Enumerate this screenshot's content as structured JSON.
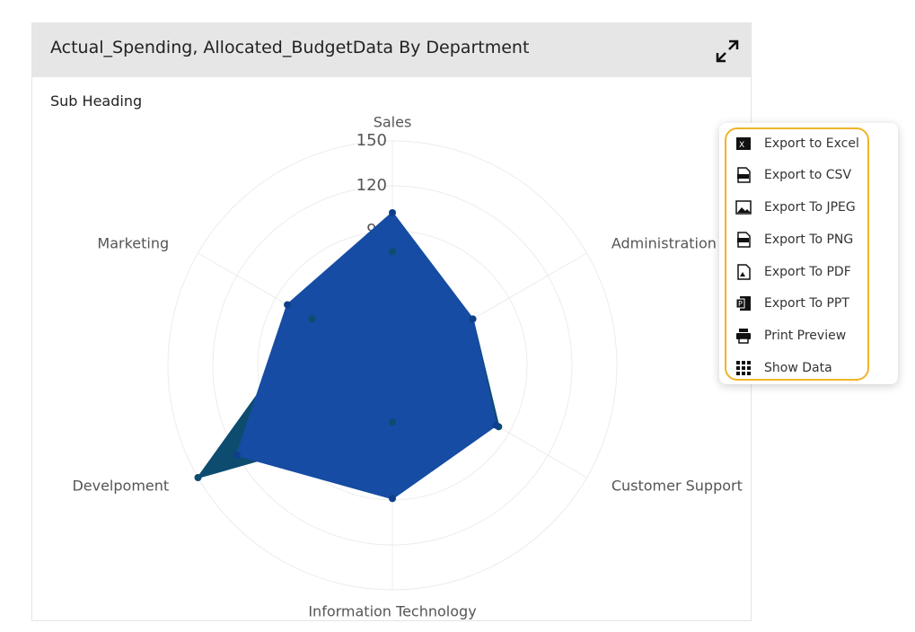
{
  "chart_data": {
    "type": "radar",
    "title": "Actual_Spending, Allocated_BudgetData By Department",
    "subtitle": "Sub Heading",
    "categories": [
      "Sales",
      "Administration",
      "Customer Support",
      "Information Technology",
      "Develpoment",
      "Marketing"
    ],
    "series": [
      {
        "color": "#0d4c6f",
        "values": [
          76,
          62,
          82,
          38,
          150,
          62
        ]
      },
      {
        "color": "#164ca3",
        "values": [
          102,
          62,
          80,
          89,
          120,
          81
        ]
      }
    ],
    "rlim": [
      0,
      150
    ],
    "rticks": [
      0,
      30,
      60,
      90,
      120,
      150
    ],
    "grid": true
  },
  "menu": [
    "Export to Excel",
    "Export to CSV",
    "Export To JPEG",
    "Export To PNG",
    "Export To PDF",
    "Export To PPT",
    "Print Preview",
    "Show Data"
  ]
}
